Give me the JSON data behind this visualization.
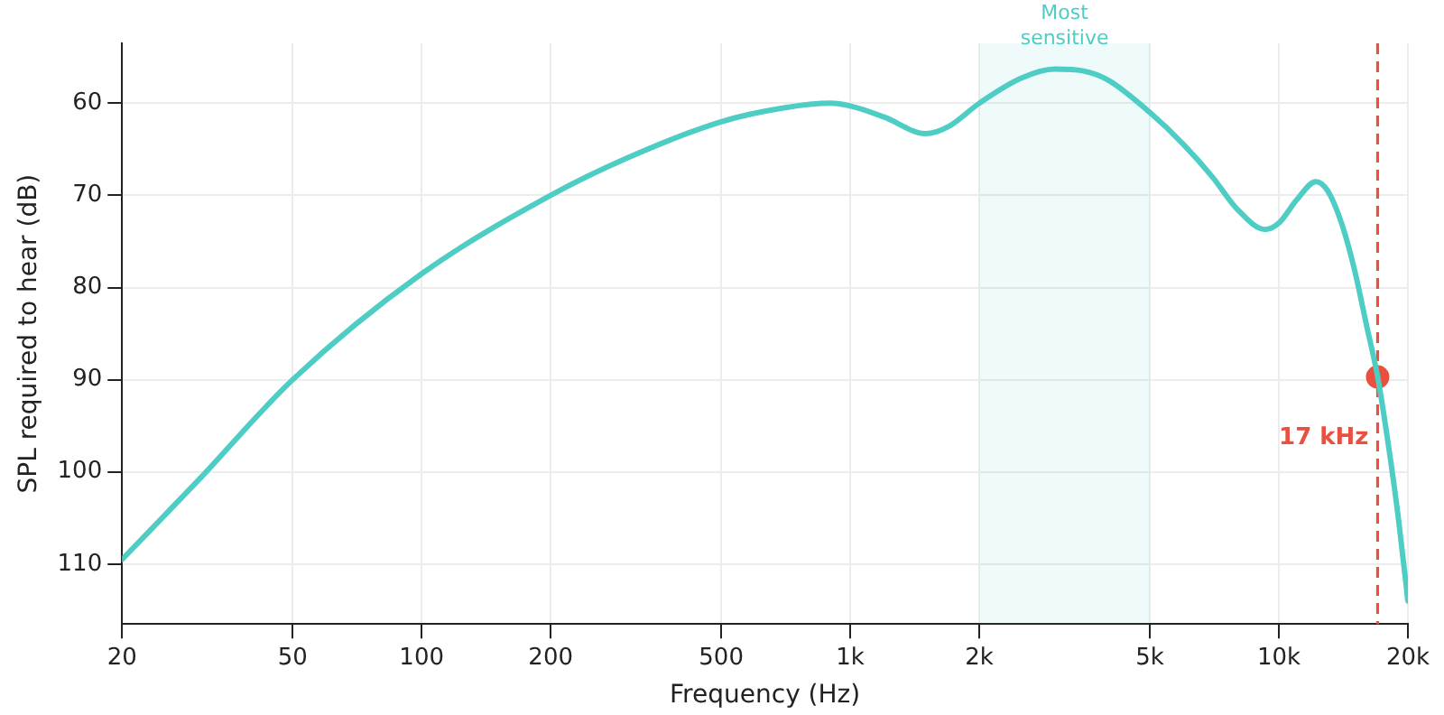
{
  "chart_data": {
    "type": "line",
    "xlabel": "Frequency (Hz)",
    "ylabel": "SPL required to hear (dB)",
    "log": "x",
    "xlim": [
      20,
      20000
    ],
    "xticks": [
      20,
      50,
      100,
      200,
      500,
      {
        "value": 1000,
        "label": "1k"
      },
      {
        "value": 2000,
        "label": "2k"
      },
      {
        "value": 5000,
        "label": "5k"
      },
      {
        "value": 10000,
        "label": "10k"
      },
      {
        "value": 20000,
        "label": "20k"
      }
    ],
    "ylim": [
      116.5,
      53.5
    ],
    "yticks": [
      60,
      70,
      80,
      90,
      100,
      110
    ],
    "grid": true,
    "legend": false,
    "series": [
      {
        "color": "#4ecdc4",
        "marker": "none",
        "x": [
          20,
          30,
          50,
          100,
          200,
          300,
          500,
          700,
          900,
          1000,
          1200,
          1500,
          1700,
          2000,
          2500,
          3000,
          3500,
          4000,
          5000,
          6000,
          7000,
          8000,
          9300,
          10000,
          11000,
          12200,
          13000,
          14000,
          15000,
          16000,
          17000,
          18000,
          19000,
          20000
        ],
        "values": [
          109.5,
          101,
          90,
          78.5,
          70,
          66,
          62,
          60.5,
          60,
          60.3,
          61.5,
          63.3,
          62.5,
          60,
          57.3,
          56.3,
          56.5,
          57.5,
          61,
          64.5,
          68,
          71.5,
          73.7,
          73,
          70.5,
          68.5,
          69.5,
          73,
          78,
          84,
          89.7,
          97,
          105,
          114
        ]
      },
      {
        "type": "scatter",
        "color": "#e8503f",
        "marker": "circle",
        "x": [
          17000
        ],
        "values": [
          89.7
        ]
      }
    ],
    "bands": [
      {
        "axis": "x",
        "from": 2000,
        "to": 5000,
        "label": "Most sensitive",
        "color": "#4ecdc4"
      }
    ],
    "ref_lines": [
      {
        "axis": "x",
        "value": 17000,
        "label": "17 kHz",
        "color": "#e8503f",
        "line_style": "dashed"
      }
    ]
  }
}
